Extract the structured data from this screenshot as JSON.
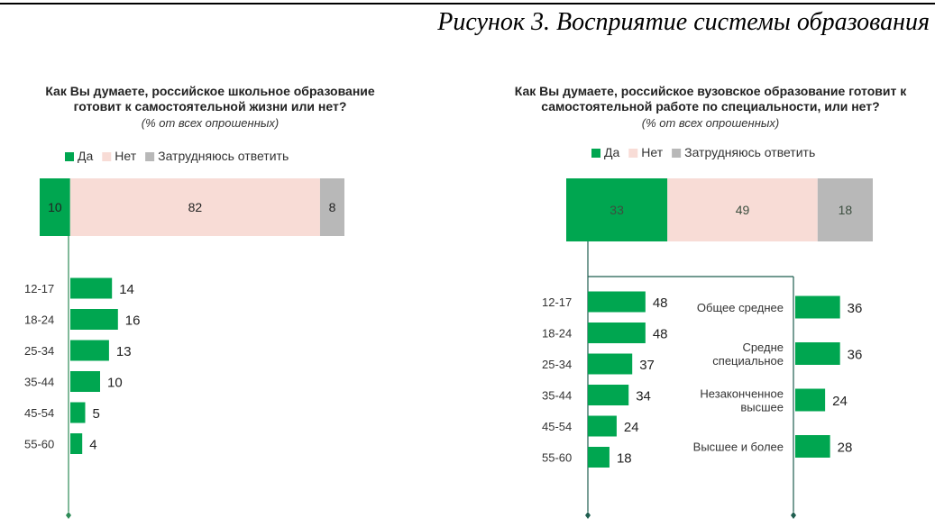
{
  "figure_title": "Рисунок 3. Восприятие системы образования",
  "colors": {
    "yes": "#00a650",
    "no": "#f8dcd6",
    "hard": "#b8b8b8",
    "line": "#2e8b57"
  },
  "chart_data": [
    {
      "type": "bar",
      "title": "Как Вы думаете, российское школьное образование готовит к самостоятельной жизни или нет?",
      "subtitle": "(% от всех опрошенных)",
      "legend": [
        "Да",
        "Нет",
        "Затрудняюсь ответить"
      ],
      "legend_placement": "top",
      "stacked_total": [
        {
          "name": "Да",
          "value": 10
        },
        {
          "name": "Нет",
          "value": 82
        },
        {
          "name": "Затрудняюсь ответить",
          "value": 8
        }
      ],
      "breakdowns": [
        {
          "series": "Да",
          "categories": [
            "12-17",
            "18-24",
            "25-34",
            "35-44",
            "45-54",
            "55-60"
          ],
          "values": [
            14,
            16,
            13,
            10,
            5,
            4
          ]
        }
      ]
    },
    {
      "type": "bar",
      "title": "Как Вы думаете, российское вузовское образование готовит к самостоятельной работе по специальности, или нет?",
      "subtitle": "(% от всех опрошенных)",
      "legend": [
        "Да",
        "Нет",
        "Затрудняюсь ответить"
      ],
      "legend_placement": "top",
      "stacked_total": [
        {
          "name": "Да",
          "value": 33
        },
        {
          "name": "Нет",
          "value": 49
        },
        {
          "name": "Затрудняюсь ответить",
          "value": 18
        }
      ],
      "breakdowns": [
        {
          "series": "Да",
          "categories": [
            "12-17",
            "18-24",
            "25-34",
            "35-44",
            "45-54",
            "55-60"
          ],
          "values": [
            48,
            48,
            37,
            34,
            24,
            18
          ]
        },
        {
          "series": "Да",
          "categories": [
            "Общее среднее",
            "Средне специальное",
            "Незаконченное высшее",
            "Высшее и более"
          ],
          "values": [
            36,
            36,
            24,
            28
          ]
        }
      ]
    }
  ]
}
